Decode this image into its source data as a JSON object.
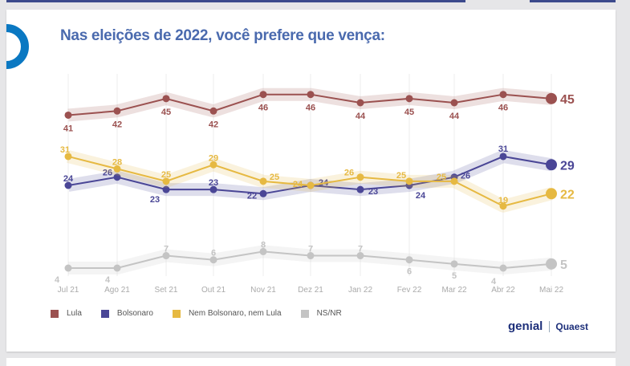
{
  "title": "Nas eleições de 2022, você prefere que vença:",
  "logos": {
    "genial": "genial",
    "quaest": "Quaest"
  },
  "chart_data": {
    "type": "line",
    "title": "Nas eleições de 2022, você prefere que vença:",
    "categories": [
      "Jul 21",
      "Ago 21",
      "Set 21",
      "Out 21",
      "Nov 21",
      "Dez 21",
      "Jan 22",
      "Fev 22",
      "Mar 22",
      "Abr 22",
      "Mai 22"
    ],
    "legend_position": "bottom-left",
    "grid": "vertical",
    "series": [
      {
        "name": "Lula",
        "color": "#9b5150",
        "values": [
          41,
          42,
          45,
          42,
          46,
          46,
          44,
          45,
          44,
          46,
          45
        ]
      },
      {
        "name": "Bolsonaro",
        "color": "#4a4696",
        "values": [
          24,
          26,
          23,
          23,
          22,
          24,
          23,
          24,
          26,
          31,
          29
        ]
      },
      {
        "name": "Nem Bolsonaro, nem Lula",
        "color": "#e6b942",
        "values": [
          31,
          28,
          25,
          29,
          25,
          24,
          26,
          25,
          25,
          19,
          22
        ]
      },
      {
        "name": "NS/NR",
        "color": "#c4c4c4",
        "values": [
          4,
          4,
          7,
          6,
          8,
          7,
          7,
          6,
          5,
          4,
          5
        ]
      }
    ]
  }
}
